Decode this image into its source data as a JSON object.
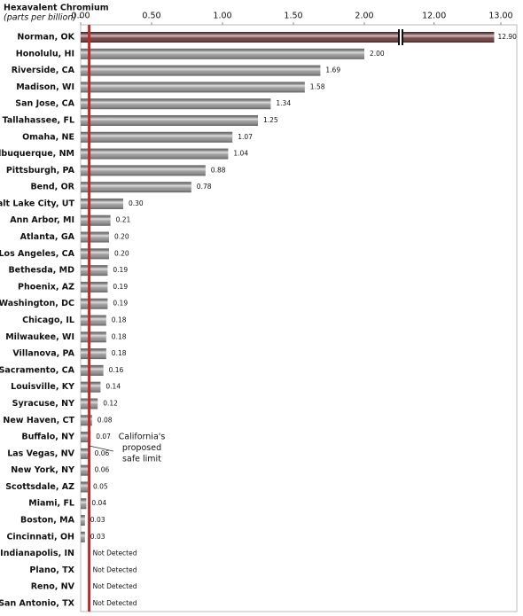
{
  "chart_data": {
    "type": "hbar",
    "axis_title": "Hexavalent Chromium",
    "axis_unit": "(parts per billion) -",
    "categories": [
      "Norman, OK",
      "Honolulu, HI",
      "Riverside, CA",
      "Madison, WI",
      "San Jose, CA",
      "Tallahassee, FL",
      "Omaha, NE",
      "Albuquerque, NM",
      "Pittsburgh, PA",
      "Bend, OR",
      "Salt Lake City, UT",
      "Ann Arbor, MI",
      "Atlanta, GA",
      "Los Angeles, CA",
      "Bethesda, MD",
      "Phoenix, AZ",
      "Washington, DC",
      "Chicago, IL",
      "Milwaukee, WI",
      "Villanova, PA",
      "Sacramento, CA",
      "Louisville, KY",
      "Syracuse, NY",
      "New Haven, CT",
      "Buffalo, NY",
      "Las Vegas, NV",
      "New York, NY",
      "Scottsdale, AZ",
      "Miami, FL",
      "Boston, MA",
      "Cincinnati, OH",
      "Indianapolis, IN",
      "Plano, TX",
      "Reno, NV",
      "San Antonio, TX"
    ],
    "values": [
      12.9,
      2.0,
      1.69,
      1.58,
      1.34,
      1.25,
      1.07,
      1.04,
      0.88,
      0.78,
      0.3,
      0.21,
      0.2,
      0.2,
      0.19,
      0.19,
      0.19,
      0.18,
      0.18,
      0.18,
      0.16,
      0.14,
      0.12,
      0.08,
      0.07,
      0.06,
      0.06,
      0.05,
      0.04,
      0.03,
      0.03,
      null,
      null,
      null,
      null
    ],
    "value_labels": [
      "12.90",
      "2.00",
      "1.69",
      "1.58",
      "1.34",
      "1.25",
      "1.07",
      "1.04",
      "0.88",
      "0.78",
      "0.30",
      "0.21",
      "0.20",
      "0.20",
      "0.19",
      "0.19",
      "0.19",
      "0.18",
      "0.18",
      "0.18",
      "0.16",
      "0.14",
      "0.12",
      "0.08",
      "0.07",
      "0.06",
      "0.06",
      "0.05",
      "0.04",
      "0.03",
      "0.03",
      "Not Detected",
      "Not Detected",
      "Not Detected",
      "Not Detected"
    ],
    "colors": [
      "#6b3434",
      "#8f8f8f",
      "#8f8f8f",
      "#8f8f8f",
      "#8f8f8f",
      "#8f8f8f",
      "#8f8f8f",
      "#8f8f8f",
      "#8f8f8f",
      "#8f8f8f",
      "#8f8f8f",
      "#8f8f8f",
      "#8f8f8f",
      "#8f8f8f",
      "#8f8f8f",
      "#8f8f8f",
      "#8f8f8f",
      "#8f8f8f",
      "#8f8f8f",
      "#8f8f8f",
      "#8f8f8f",
      "#8f8f8f",
      "#8f8f8f",
      "#8f8f8f",
      "#8f8f8f",
      "#8f8f8f",
      "#8f8f8f",
      "#8f8f8f",
      "#8f8f8f",
      "#8f8f8f",
      "#8f8f8f",
      "#8f8f8f",
      "#8f8f8f",
      "#8f8f8f",
      "#8f8f8f"
    ],
    "xlim": [
      0,
      13
    ],
    "axis_break": [
      2.25,
      11.5
    ],
    "xticks": [
      {
        "value": 0,
        "label": "0.00"
      },
      {
        "value": 0.5,
        "label": "0.50"
      },
      {
        "value": 1,
        "label": "1.00"
      },
      {
        "value": 1.5,
        "label": "1.50"
      },
      {
        "value": 2,
        "label": "2.00"
      },
      {
        "value": 12,
        "label": "12.00"
      },
      {
        "value": 13,
        "label": "13.00"
      }
    ],
    "reference_line": {
      "value": 0.06,
      "color": "#c0282b",
      "label": [
        "California's",
        "proposed",
        "safe limit"
      ]
    }
  }
}
